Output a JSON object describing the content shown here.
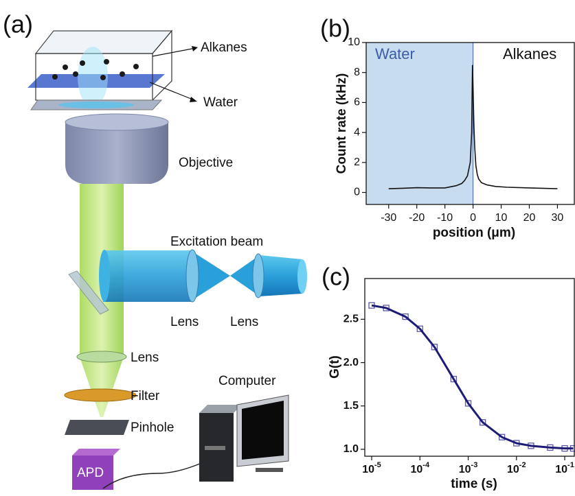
{
  "panel_a": {
    "label": "(a)",
    "labels": {
      "alkanes": "Alkanes",
      "water": "Water",
      "objective": "Objective",
      "excitation_beam": "Excitation beam",
      "lens_1": "Lens",
      "lens_2": "Lens",
      "lens_3": "Lens",
      "filter": "Filter",
      "pinhole": "Pinhole",
      "computer": "Computer",
      "apd": "APD"
    }
  },
  "chart_data": [
    {
      "type": "line",
      "panel_label": "(b)",
      "x_label": "position (μm)",
      "y_label": "Count rate (kHz)",
      "region_labels": [
        "Water",
        "Alkanes"
      ],
      "shade_x": [
        -38,
        0
      ],
      "shade_color": "#c8dcef",
      "x": [
        -30,
        -25,
        -20,
        -15,
        -10,
        -6,
        -4,
        -3,
        -2,
        -1,
        -0.5,
        -0.2,
        0,
        0.3,
        0.6,
        1,
        1.5,
        2,
        3,
        5,
        8,
        12,
        20,
        30
      ],
      "series": [
        {
          "color": "#111111",
          "values": [
            0.25,
            0.28,
            0.32,
            0.3,
            0.3,
            0.45,
            0.6,
            0.8,
            1.1,
            2.0,
            4.0,
            8.5,
            7.0,
            4.5,
            3.0,
            1.8,
            1.2,
            0.9,
            0.65,
            0.5,
            0.4,
            0.35,
            0.3,
            0.25
          ]
        }
      ],
      "xlim": [
        -38,
        36
      ],
      "xticks": [
        -30,
        -20,
        -10,
        0,
        10,
        20,
        30
      ],
      "ylim": [
        -0.8,
        10
      ],
      "yticks": [
        0,
        2,
        4,
        6,
        8,
        10
      ]
    },
    {
      "type": "line",
      "panel_label": "(c)",
      "x_label": "time (s)",
      "y_label": "G(t)",
      "xscale": "log",
      "x": [
        1e-05,
        2e-05,
        5e-05,
        0.0001,
        0.0002,
        0.0005,
        0.001,
        0.002,
        0.005,
        0.01,
        0.02,
        0.05,
        0.1,
        0.15
      ],
      "series": [
        {
          "color": "#5a55a8",
          "marker": "square",
          "values": [
            2.66,
            2.63,
            2.53,
            2.39,
            2.18,
            1.81,
            1.53,
            1.31,
            1.14,
            1.07,
            1.04,
            1.02,
            1.01,
            1.01
          ]
        },
        {
          "color": "#1c1c78",
          "values": [
            2.66,
            2.63,
            2.53,
            2.39,
            2.18,
            1.81,
            1.53,
            1.31,
            1.14,
            1.07,
            1.04,
            1.02,
            1.01,
            1.01
          ]
        }
      ],
      "xlim": [
        7.2e-06,
        0.158
      ],
      "xticks": [
        {
          "value": 1e-05,
          "label": "10",
          "exponent": "-5"
        },
        {
          "value": 0.0001,
          "label": "10",
          "exponent": "-4"
        },
        {
          "value": 0.001,
          "label": "10",
          "exponent": "-3"
        },
        {
          "value": 0.01,
          "label": "10",
          "exponent": "-2"
        },
        {
          "value": 0.1,
          "label": "10",
          "exponent": "-1"
        }
      ],
      "ylim": [
        0.92,
        2.97
      ],
      "yticks": [
        {
          "value": 1,
          "label": "1.0"
        },
        1.5,
        {
          "value": 2,
          "label": "2.0"
        },
        2.5
      ]
    }
  ]
}
